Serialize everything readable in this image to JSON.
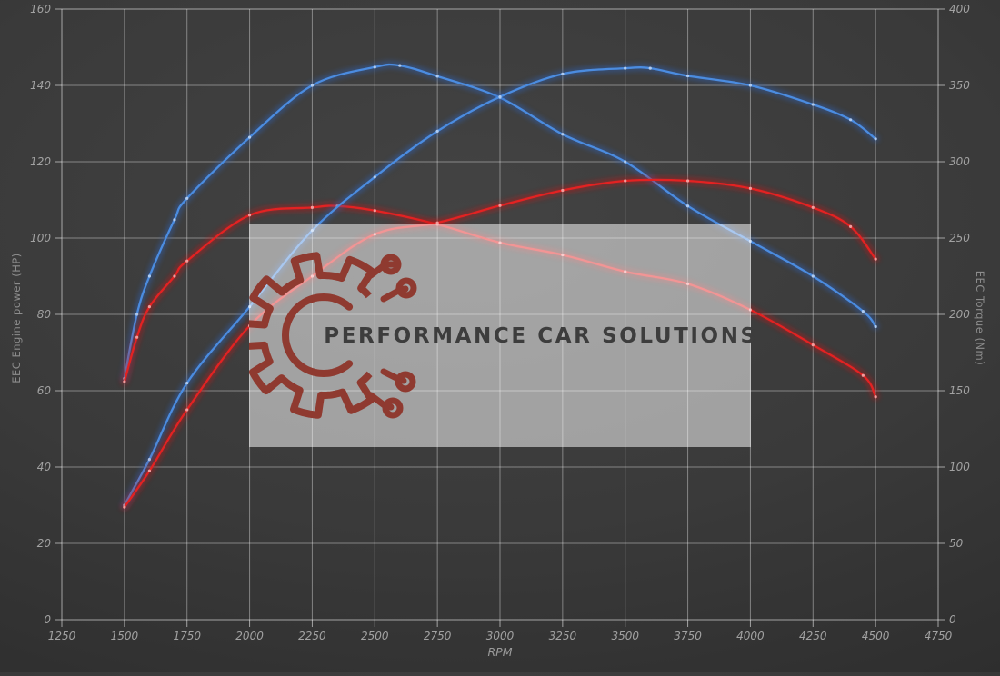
{
  "watermark": {
    "text": "PERFORMANCE CAR SOLUTIONS",
    "text_color": "#3d3d3d",
    "box_fill": "rgba(255,255,255,0.52)",
    "logo_color": "#8f3a30"
  },
  "chart_data": {
    "type": "line",
    "xlabel": "RPM",
    "ylabel_left": "EEC Engine power (HP)",
    "ylabel_right": "EEC Torque (Nm)",
    "x_min": 1250,
    "x_max": 4750,
    "x_ticks": [
      1250,
      1500,
      1750,
      2000,
      2250,
      2500,
      2750,
      3000,
      3250,
      3500,
      3750,
      4000,
      4250,
      4500,
      4750
    ],
    "y_left": {
      "min": 0,
      "max": 160,
      "ticks": [
        0,
        20,
        40,
        60,
        80,
        100,
        120,
        140,
        160
      ]
    },
    "y_right": {
      "min": 0,
      "max": 400,
      "ticks": [
        0,
        50,
        100,
        150,
        200,
        250,
        300,
        350,
        400
      ]
    },
    "grid": true,
    "grid_color": "rgba(255,255,255,0.38)",
    "frame_color": "rgba(255,255,255,0.55)",
    "legend": "none",
    "series": [
      {
        "name": "blue-torque",
        "axis": "right",
        "color": "#4b8ce0",
        "glow": "#2d62b8",
        "x": [
          1500,
          1550,
          1600,
          1700,
          1750,
          2000,
          2250,
          2500,
          2600,
          2750,
          3000,
          3250,
          3500,
          3750,
          4000,
          4250,
          4450,
          4500
        ],
        "values": [
          158,
          200,
          225,
          262,
          276,
          316,
          350,
          362,
          363,
          356,
          342,
          318,
          300,
          271,
          248,
          225,
          202,
          192
        ]
      },
      {
        "name": "red-torque",
        "axis": "right",
        "color": "#e32222",
        "glow": "#c41515",
        "x": [
          1500,
          1550,
          1600,
          1700,
          1750,
          2000,
          2250,
          2350,
          2500,
          2750,
          3000,
          3250,
          3500,
          3750,
          4000,
          4250,
          4450,
          4500
        ],
        "values": [
          156,
          185,
          205,
          225,
          235,
          265,
          270,
          271,
          268,
          259,
          247,
          239,
          228,
          220,
          203,
          180,
          160,
          146
        ]
      },
      {
        "name": "blue-power",
        "axis": "left",
        "color": "#4b8ce0",
        "glow": "#2d62b8",
        "x": [
          1500,
          1600,
          1750,
          2000,
          2250,
          2500,
          2750,
          3000,
          3250,
          3500,
          3600,
          3750,
          4000,
          4250,
          4400,
          4500
        ],
        "values": [
          30,
          42,
          62,
          82,
          102,
          116,
          128,
          137,
          143,
          144.5,
          144.5,
          142.5,
          140,
          135,
          131,
          126
        ]
      },
      {
        "name": "red-power",
        "axis": "left",
        "color": "#e32222",
        "glow": "#c41515",
        "x": [
          1500,
          1600,
          1750,
          2000,
          2250,
          2500,
          2750,
          3000,
          3250,
          3500,
          3750,
          4000,
          4250,
          4400,
          4500
        ],
        "values": [
          29.5,
          39,
          55,
          77,
          90,
          101,
          104,
          108.5,
          112.5,
          115,
          115,
          113,
          108,
          103,
          94.5
        ]
      }
    ]
  }
}
